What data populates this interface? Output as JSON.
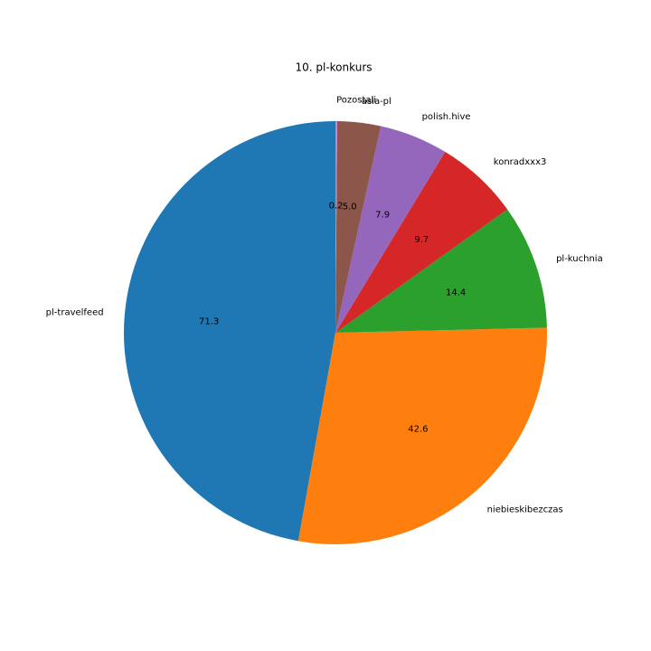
{
  "chart_data": {
    "type": "pie",
    "title": "10. pl-konkurs",
    "categories": [
      "pl-travelfeed",
      "niebieskibezczas",
      "pl-kuchnia",
      "konradxxx3",
      "polish.hive",
      "asia-pl",
      "Pozostali"
    ],
    "values": [
      71.3,
      42.6,
      14.4,
      9.7,
      7.9,
      5.0,
      0.2
    ],
    "value_labels": [
      "71.3",
      "42.6",
      "14.4",
      "9.7",
      "7.9",
      "5.0",
      "0.2"
    ],
    "colors": [
      "#1f77b4",
      "#ff7f0e",
      "#2ca02c",
      "#d62728",
      "#9467bd",
      "#8c564b",
      "#e377c2"
    ]
  }
}
